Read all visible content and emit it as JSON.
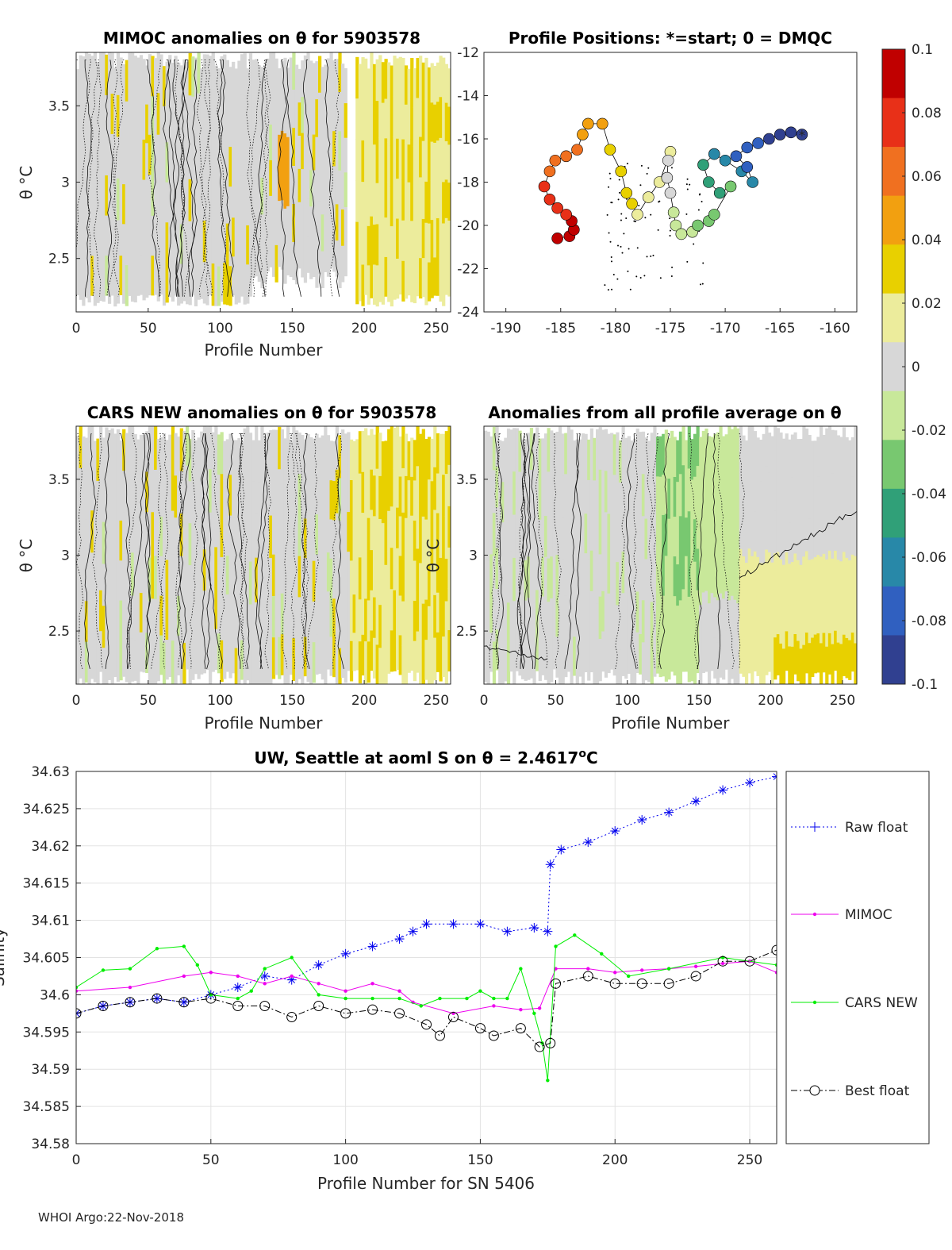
{
  "footer": "WHOI Argo:22-Nov-2018",
  "panels": {
    "p1": {
      "title": "MIMOC anomalies on θ  for 5903578",
      "xlabel": "Profile Number",
      "ylabel": "θ °C"
    },
    "p2": {
      "title": "Profile Positions: *=start; 0 = DMQC"
    },
    "p3": {
      "title": "CARS NEW anomalies on θ for 5903578",
      "xlabel": "Profile Number",
      "ylabel": "θ °C"
    },
    "p4": {
      "title": "Anomalies from all profile average on θ",
      "xlabel": "Profile Number",
      "ylabel": "θ °C"
    }
  },
  "colorbar": {
    "ticks": [
      "0.1",
      "0.08",
      "0.06",
      "0.04",
      "0.02",
      "0",
      "-0.02",
      "-0.04",
      "-0.06",
      "-0.08",
      "-0.1"
    ],
    "colors": [
      "#c00000",
      "#e83018",
      "#f07020",
      "#f2a010",
      "#e8d000",
      "#ecec9c",
      "#d7d7d7",
      "#c8e89a",
      "#78c870",
      "#30a078",
      "#2888a8",
      "#3060c0",
      "#304090"
    ]
  },
  "chart_data": [
    {
      "type": "heatmap",
      "title": "MIMOC anomalies on θ  for 5903578",
      "xlabel": "Profile Number",
      "ylabel": "θ °C",
      "xlim": [
        0,
        260
      ],
      "ylim": [
        2.15,
        3.85
      ],
      "xticks": [
        0,
        50,
        100,
        150,
        200,
        250
      ],
      "yticks": [
        2.5,
        3,
        3.5
      ],
      "anomaly_range": [
        -0.1,
        0.1
      ]
    },
    {
      "type": "scatter",
      "title": "Profile Positions: *=start; 0 = DMQC",
      "xlim": [
        -192,
        -158
      ],
      "ylim": [
        -24,
        -12
      ],
      "xticks": [
        -190,
        -185,
        -180,
        -175,
        -170,
        -165,
        -160
      ],
      "yticks": [
        -12,
        -14,
        -16,
        -18,
        -20,
        -22,
        -24
      ],
      "track": [
        [
          -163,
          -15.8
        ],
        [
          -164,
          -15.7
        ],
        [
          -165,
          -15.8
        ],
        [
          -166,
          -16
        ],
        [
          -167,
          -16.2
        ],
        [
          -168,
          -16.4
        ],
        [
          -169,
          -16.8
        ],
        [
          -168,
          -17.3
        ],
        [
          -167.5,
          -18
        ],
        [
          -168.5,
          -17.5
        ],
        [
          -170,
          -17
        ],
        [
          -171,
          -16.7
        ],
        [
          -172,
          -17.2
        ],
        [
          -171.5,
          -18
        ],
        [
          -170.5,
          -18.5
        ],
        [
          -169.5,
          -18.2
        ],
        [
          -171,
          -19.5
        ],
        [
          -171.5,
          -19.8
        ],
        [
          -172.5,
          -20
        ],
        [
          -173,
          -20.3
        ],
        [
          -174,
          -20.4
        ],
        [
          -174.5,
          -20
        ],
        [
          -174.7,
          -19.4
        ],
        [
          -175,
          -18.5
        ],
        [
          -175.3,
          -17.8
        ],
        [
          -175.2,
          -17
        ],
        [
          -175,
          -16.6
        ],
        [
          -176,
          -18
        ],
        [
          -177,
          -18.7
        ],
        [
          -178,
          -19.5
        ],
        [
          -178.5,
          -19
        ],
        [
          -179,
          -18.5
        ],
        [
          -179.5,
          -17.5
        ],
        [
          -180.5,
          -16.5
        ],
        [
          -181.2,
          -15.3
        ],
        [
          -182.5,
          -15.3
        ],
        [
          -183,
          -15.8
        ],
        [
          -183.5,
          -16.5
        ],
        [
          -184.5,
          -16.8
        ],
        [
          -185.5,
          -17
        ],
        [
          -186,
          -17.5
        ],
        [
          -186.5,
          -18.2
        ],
        [
          -186,
          -18.8
        ],
        [
          -185.3,
          -19.2
        ],
        [
          -184.5,
          -19.5
        ],
        [
          -184,
          -19.8
        ],
        [
          -183.8,
          -20.2
        ],
        [
          -184.2,
          -20.5
        ],
        [
          -185.3,
          -20.6
        ]
      ],
      "start": [
        -163,
        -15.8
      ]
    },
    {
      "type": "heatmap",
      "title": "CARS NEW anomalies on θ for 5903578",
      "xlabel": "Profile Number",
      "ylabel": "θ °C",
      "xlim": [
        0,
        260
      ],
      "ylim": [
        2.15,
        3.85
      ],
      "xticks": [
        0,
        50,
        100,
        150,
        200,
        250
      ],
      "yticks": [
        2.5,
        3,
        3.5
      ]
    },
    {
      "type": "heatmap",
      "title": "Anomalies from all profile average on θ",
      "xlabel": "Profile Number",
      "ylabel": "θ °C",
      "xlim": [
        0,
        260
      ],
      "ylim": [
        2.15,
        3.85
      ],
      "xticks": [
        0,
        50,
        100,
        150,
        200,
        250
      ],
      "yticks": [
        2.5,
        3,
        3.5
      ]
    },
    {
      "type": "line",
      "title": "UW, Seattle at aoml S on θ = 2.4617",
      "title_sup": "o",
      "title_suffix": "C",
      "xlabel": "Profile Number for SN 5406",
      "ylabel": "Salinity",
      "xlim": [
        0,
        260
      ],
      "ylim": [
        34.58,
        34.63
      ],
      "xticks": [
        0,
        50,
        100,
        150,
        200,
        250
      ],
      "yticks": [
        34.58,
        34.585,
        34.59,
        34.595,
        34.6,
        34.605,
        34.61,
        34.615,
        34.62,
        34.625,
        34.63
      ],
      "ytick_labels": [
        "34.58",
        "34.585",
        "34.59",
        "34.595",
        "34.6",
        "34.605",
        "34.61",
        "34.615",
        "34.62",
        "34.625",
        "34.63"
      ],
      "legend": [
        "Raw float",
        "MIMOC",
        "CARS NEW",
        "Best float"
      ],
      "series": [
        {
          "name": "Raw float",
          "color": "#0000ee",
          "values": [
            [
              0,
              34.5975
            ],
            [
              10,
              34.5985
            ],
            [
              20,
              34.599
            ],
            [
              30,
              34.5995
            ],
            [
              40,
              34.599
            ],
            [
              50,
              34.6
            ],
            [
              60,
              34.601
            ],
            [
              70,
              34.6025
            ],
            [
              80,
              34.602
            ],
            [
              90,
              34.604
            ],
            [
              100,
              34.6055
            ],
            [
              110,
              34.6065
            ],
            [
              120,
              34.6075
            ],
            [
              125,
              34.6085
            ],
            [
              130,
              34.6095
            ],
            [
              140,
              34.6095
            ],
            [
              150,
              34.6095
            ],
            [
              160,
              34.6085
            ],
            [
              170,
              34.609
            ],
            [
              175,
              34.6085
            ],
            [
              176,
              34.6175
            ],
            [
              180,
              34.6195
            ],
            [
              190,
              34.6205
            ],
            [
              200,
              34.622
            ],
            [
              210,
              34.6235
            ],
            [
              220,
              34.6245
            ],
            [
              230,
              34.626
            ],
            [
              240,
              34.6275
            ],
            [
              250,
              34.6285
            ],
            [
              260,
              34.6293
            ]
          ]
        },
        {
          "name": "MIMOC",
          "color": "#ee00ee",
          "values": [
            [
              0,
              34.6005
            ],
            [
              20,
              34.601
            ],
            [
              40,
              34.6025
            ],
            [
              50,
              34.603
            ],
            [
              60,
              34.6025
            ],
            [
              70,
              34.6015
            ],
            [
              80,
              34.6025
            ],
            [
              90,
              34.6015
            ],
            [
              100,
              34.6005
            ],
            [
              110,
              34.6015
            ],
            [
              120,
              34.6005
            ],
            [
              125,
              34.599
            ],
            [
              140,
              34.5975
            ],
            [
              155,
              34.5985
            ],
            [
              165,
              34.598
            ],
            [
              172,
              34.5982
            ],
            [
              178,
              34.6035
            ],
            [
              190,
              34.6035
            ],
            [
              200,
              34.603
            ],
            [
              210,
              34.6033
            ],
            [
              220,
              34.6035
            ],
            [
              230,
              34.6038
            ],
            [
              240,
              34.6042
            ],
            [
              250,
              34.6045
            ],
            [
              260,
              34.603
            ]
          ]
        },
        {
          "name": "CARS NEW",
          "color": "#00ee00",
          "values": [
            [
              0,
              34.601
            ],
            [
              10,
              34.6033
            ],
            [
              20,
              34.6035
            ],
            [
              30,
              34.6062
            ],
            [
              40,
              34.6065
            ],
            [
              45,
              34.604
            ],
            [
              50,
              34.6
            ],
            [
              60,
              34.5995
            ],
            [
              65,
              34.6005
            ],
            [
              70,
              34.6035
            ],
            [
              80,
              34.605
            ],
            [
              90,
              34.6
            ],
            [
              100,
              34.5995
            ],
            [
              110,
              34.5995
            ],
            [
              120,
              34.5995
            ],
            [
              128,
              34.5985
            ],
            [
              135,
              34.5995
            ],
            [
              145,
              34.5995
            ],
            [
              150,
              34.6005
            ],
            [
              155,
              34.5995
            ],
            [
              160,
              34.5995
            ],
            [
              165,
              34.6035
            ],
            [
              170,
              34.5975
            ],
            [
              173,
              34.5935
            ],
            [
              175,
              34.5885
            ],
            [
              178,
              34.6065
            ],
            [
              185,
              34.608
            ],
            [
              195,
              34.6055
            ],
            [
              205,
              34.6025
            ],
            [
              220,
              34.6035
            ],
            [
              240,
              34.605
            ],
            [
              260,
              34.604
            ]
          ]
        },
        {
          "name": "Best float",
          "color": "#000000",
          "values": [
            [
              0,
              34.5975
            ],
            [
              10,
              34.5985
            ],
            [
              20,
              34.599
            ],
            [
              30,
              34.5995
            ],
            [
              40,
              34.599
            ],
            [
              50,
              34.5995
            ],
            [
              60,
              34.5985
            ],
            [
              70,
              34.5985
            ],
            [
              80,
              34.597
            ],
            [
              90,
              34.5985
            ],
            [
              100,
              34.5975
            ],
            [
              110,
              34.598
            ],
            [
              120,
              34.5975
            ],
            [
              130,
              34.596
            ],
            [
              135,
              34.5945
            ],
            [
              140,
              34.597
            ],
            [
              150,
              34.5955
            ],
            [
              155,
              34.5945
            ],
            [
              165,
              34.5955
            ],
            [
              172,
              34.593
            ],
            [
              176,
              34.5935
            ],
            [
              178,
              34.6015
            ],
            [
              190,
              34.6025
            ],
            [
              200,
              34.6015
            ],
            [
              210,
              34.6015
            ],
            [
              220,
              34.6015
            ],
            [
              230,
              34.6025
            ],
            [
              240,
              34.6045
            ],
            [
              250,
              34.6045
            ],
            [
              260,
              34.606
            ]
          ]
        }
      ]
    }
  ]
}
